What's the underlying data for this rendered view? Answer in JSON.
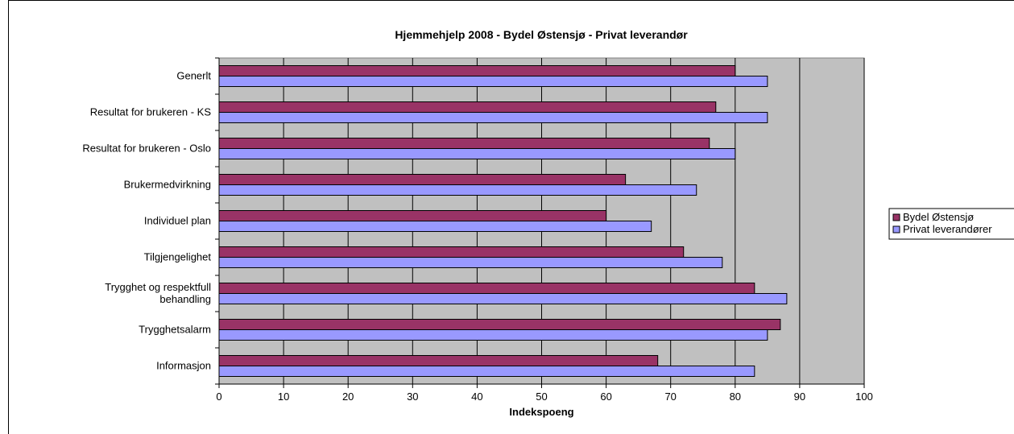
{
  "chart_data": {
    "type": "bar",
    "orientation": "horizontal",
    "title": "Hjemmehjelp 2008 - Bydel Østensjø - Privat leverandør",
    "xlabel": "Indekspoeng",
    "ylabel": "",
    "xlim": [
      0,
      100
    ],
    "x_ticks": [
      "0",
      "10",
      "20",
      "30",
      "40",
      "50",
      "60",
      "70",
      "80",
      "90",
      "100"
    ],
    "grid": true,
    "legend_position": "right",
    "categories": [
      "Generlt",
      "Resultat for brukeren - KS",
      "Resultat for brukeren - Oslo",
      "Brukermedvirkning",
      "Individuel plan",
      "Tilgjengelighet",
      "Trygghet og respektfull behandling",
      "Trygghetsalarm",
      "Informasjon"
    ],
    "category_lines": [
      [
        "Generlt"
      ],
      [
        "Resultat for brukeren - KS"
      ],
      [
        "Resultat for brukeren - Oslo"
      ],
      [
        "Brukermedvirkning"
      ],
      [
        "Individuel plan"
      ],
      [
        "Tilgjengelighet"
      ],
      [
        "Trygghet og respektfull",
        "behandling"
      ],
      [
        "Trygghetsalarm"
      ],
      [
        "Informasjon"
      ]
    ],
    "series": [
      {
        "name": "Bydel Østensjø",
        "color": "#993366",
        "values": [
          80,
          77,
          76,
          63,
          60,
          72,
          83,
          87,
          68
        ]
      },
      {
        "name": "Privat leverandører",
        "color": "#9999ff",
        "values": [
          85,
          85,
          80,
          74,
          67,
          78,
          88,
          85,
          83
        ]
      }
    ],
    "plot_background": "#c0c0c0"
  }
}
